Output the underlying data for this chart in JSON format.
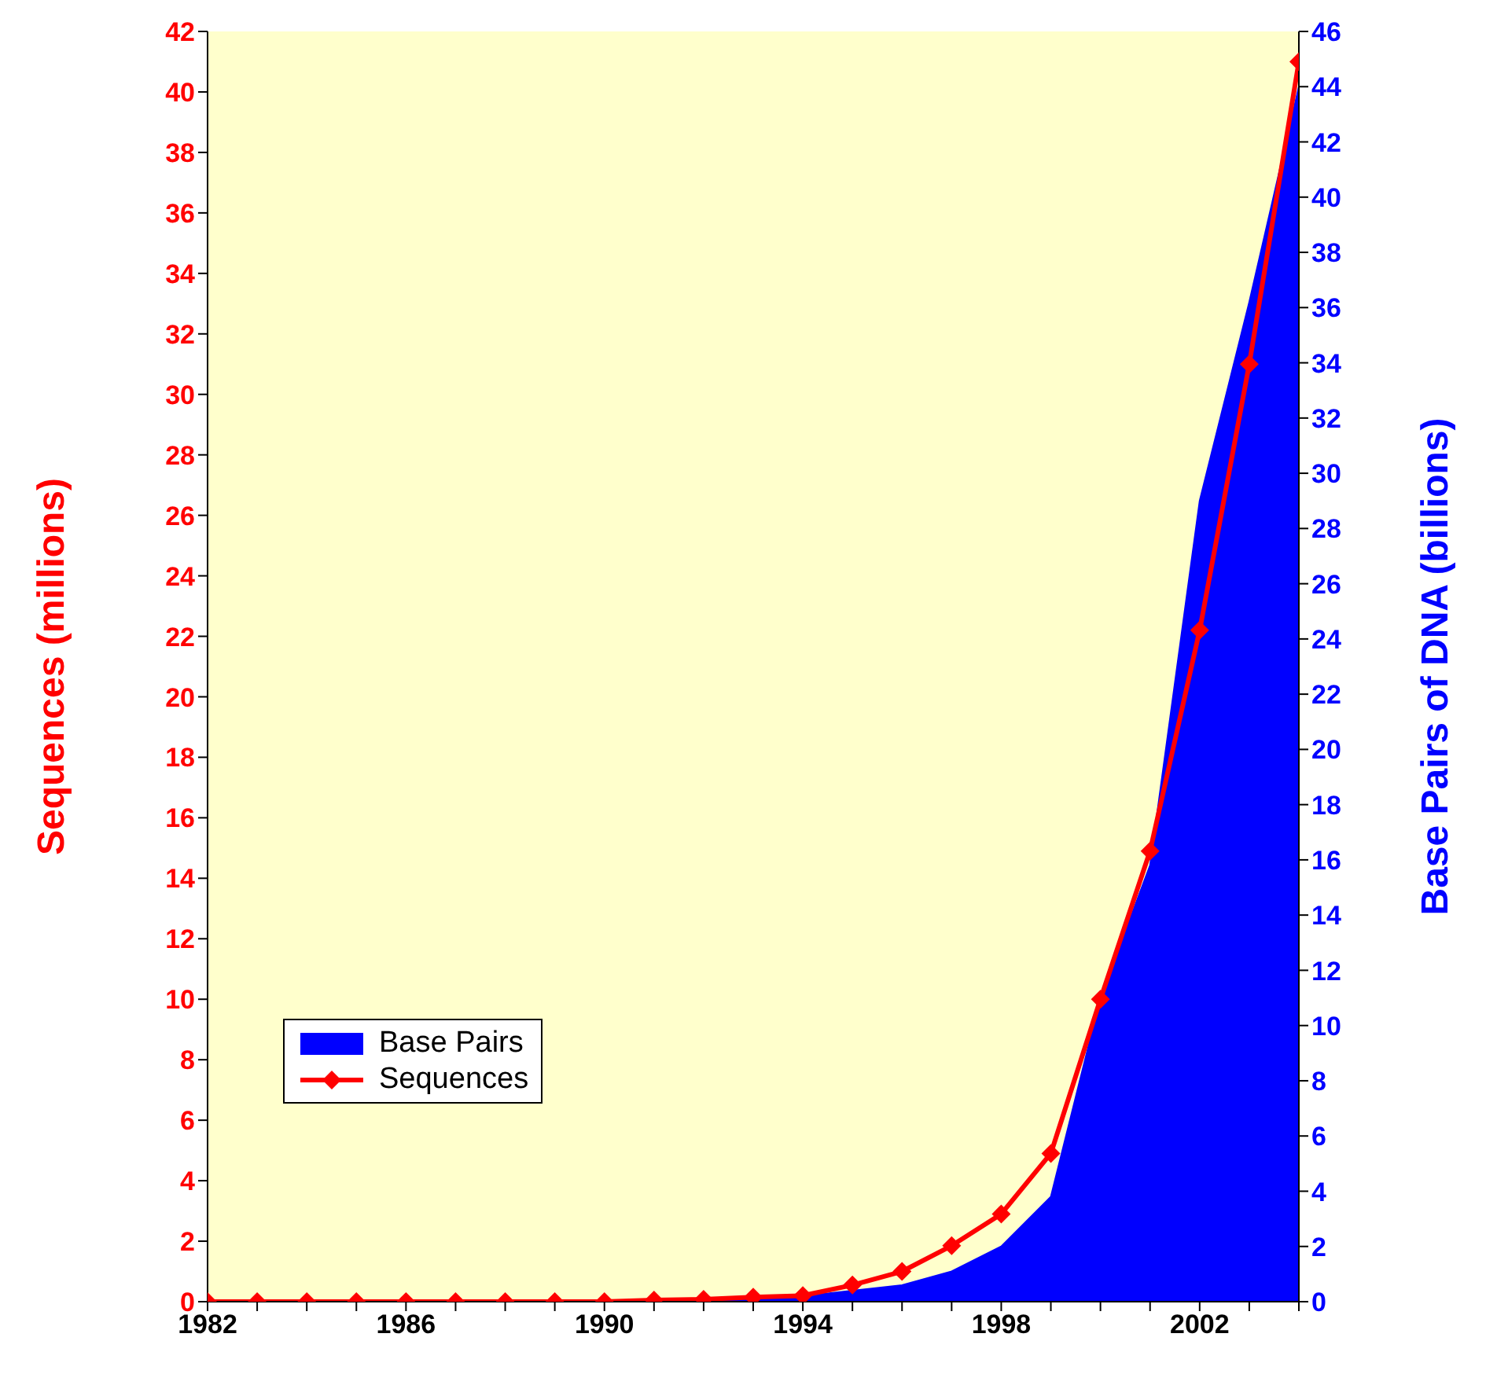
{
  "chart_data": {
    "type": "line",
    "ylabel": "Sequences (millions)",
    "y2label": "Base Pairs of DNA (billions)",
    "x": [
      1982,
      1983,
      1984,
      1985,
      1986,
      1987,
      1988,
      1989,
      1990,
      1991,
      1992,
      1993,
      1994,
      1995,
      1996,
      1997,
      1998,
      1999,
      2000,
      2001,
      2002,
      2003,
      2004
    ],
    "series": [
      {
        "name": "Base Pairs",
        "type": "area",
        "axis": "y2",
        "color": "#0000ff",
        "values": [
          0,
          0,
          0,
          0,
          0,
          0,
          0,
          0,
          0,
          0,
          0,
          0.1,
          0.2,
          0.4,
          0.6,
          1.1,
          2.0,
          3.8,
          11.0,
          15.8,
          29.0,
          36.2,
          44.0
        ]
      },
      {
        "name": "Sequences",
        "color": "#ff0000",
        "marker": "diamond",
        "values": [
          0,
          0,
          0,
          0,
          0,
          0,
          0,
          0,
          0,
          0.05,
          0.08,
          0.15,
          0.2,
          0.55,
          1.0,
          1.85,
          2.9,
          4.9,
          10.0,
          14.9,
          22.2,
          31.0,
          41.0
        ]
      }
    ],
    "xlim": [
      1982,
      2004
    ],
    "xticks": [
      1982,
      1986,
      1990,
      1994,
      1998,
      2002
    ],
    "ylim": [
      0,
      42
    ],
    "yticks": [
      0,
      2,
      4,
      6,
      8,
      10,
      12,
      14,
      16,
      18,
      20,
      22,
      24,
      26,
      28,
      30,
      32,
      34,
      36,
      38,
      40,
      42
    ],
    "y2lim": [
      0,
      46
    ],
    "y2ticks": [
      0,
      2,
      4,
      6,
      8,
      10,
      12,
      14,
      16,
      18,
      20,
      22,
      24,
      26,
      28,
      30,
      32,
      34,
      36,
      38,
      40,
      42,
      44,
      46
    ],
    "grid": false,
    "legend": "bottom left"
  }
}
